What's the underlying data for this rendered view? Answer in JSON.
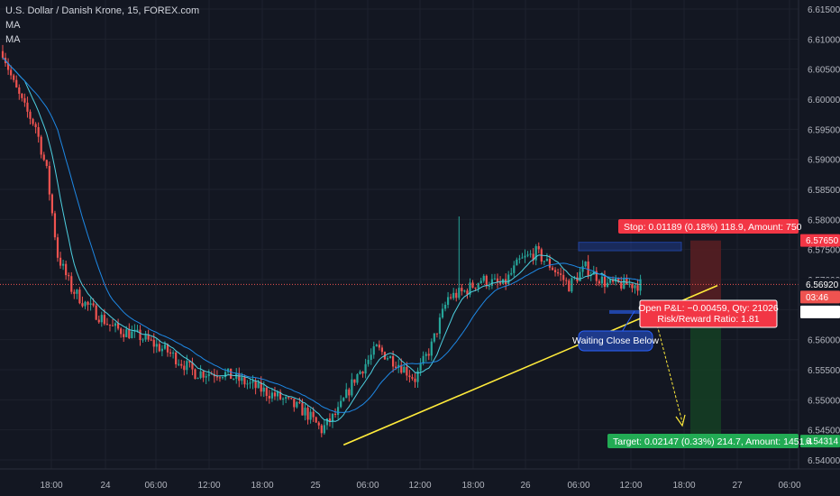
{
  "header": {
    "symbol_title": "U.S. Dollar / Danish Krone, 15, FOREX.com",
    "indicators": [
      "MA",
      "MA"
    ]
  },
  "colors": {
    "background": "#131722",
    "up_candle": "#26a69a",
    "down_candle": "#ef5350",
    "ma_fast": "#4dd0e1",
    "ma_slow": "#1e88e5",
    "trendline": "#ffeb3b",
    "stop_zone": "#5a1e22",
    "target_zone": "#153d24",
    "current_price_line": "#ef5350"
  },
  "chart_data": {
    "type": "candlestick",
    "symbol": "USD/DKK",
    "interval": "15",
    "x_labels": [
      "18:00",
      "24",
      "06:00",
      "12:00",
      "18:00",
      "25",
      "06:00",
      "12:00",
      "18:00",
      "26",
      "06:00",
      "12:00",
      "18:00",
      "27",
      "06:00"
    ],
    "y_ticks": [
      "6.61500",
      "6.61000",
      "6.60500",
      "6.60000",
      "6.59500",
      "6.59000",
      "6.58500",
      "6.58000",
      "6.57500",
      "6.57000",
      "6.56500",
      "6.56000",
      "6.55500",
      "6.55000",
      "6.54500",
      "6.54000"
    ],
    "ylim": [
      6.5385,
      6.6165
    ],
    "price_path_approx": [
      {
        "t": 0,
        "price": 6.608
      },
      {
        "t": 4,
        "price": 6.6025
      },
      {
        "t": 8,
        "price": 6.5985
      },
      {
        "t": 12,
        "price": 6.5955
      },
      {
        "t": 16,
        "price": 6.588
      },
      {
        "t": 20,
        "price": 6.574
      },
      {
        "t": 25,
        "price": 6.5685
      },
      {
        "t": 30,
        "price": 6.566
      },
      {
        "t": 40,
        "price": 6.562
      },
      {
        "t": 50,
        "price": 6.5605
      },
      {
        "t": 60,
        "price": 6.558
      },
      {
        "t": 70,
        "price": 6.5545
      },
      {
        "t": 80,
        "price": 6.5545
      },
      {
        "t": 90,
        "price": 6.5525
      },
      {
        "t": 100,
        "price": 6.5505
      },
      {
        "t": 110,
        "price": 6.548
      },
      {
        "t": 116,
        "price": 6.545
      },
      {
        "t": 122,
        "price": 6.548
      },
      {
        "t": 128,
        "price": 6.5535
      },
      {
        "t": 136,
        "price": 6.5585
      },
      {
        "t": 144,
        "price": 6.556
      },
      {
        "t": 150,
        "price": 6.5535
      },
      {
        "t": 156,
        "price": 6.559
      },
      {
        "t": 162,
        "price": 6.567
      },
      {
        "t": 168,
        "price": 6.568
      },
      {
        "t": 174,
        "price": 6.57
      },
      {
        "t": 182,
        "price": 6.569
      },
      {
        "t": 188,
        "price": 6.573
      },
      {
        "t": 194,
        "price": 6.5745
      },
      {
        "t": 200,
        "price": 6.572
      },
      {
        "t": 206,
        "price": 6.569
      },
      {
        "t": 212,
        "price": 6.572
      },
      {
        "t": 220,
        "price": 6.5692
      }
    ],
    "trendline": {
      "x1": 124,
      "y1": 6.5425,
      "x2": 260,
      "y2": 6.569
    },
    "price_labels": {
      "stop": "6.57650",
      "current": "6.56920",
      "countdown": "03:46",
      "entry": "6.56461",
      "target": "6.54314"
    },
    "current_price": 6.5692,
    "entry_price": 6.56461,
    "stop_price": 6.5765,
    "target_price": 6.54314,
    "resistance_zone": [
      6.5748,
      6.5762
    ]
  },
  "annotations": {
    "stop_label": "Stop: 0.01189 (0.18%) 118.9, Amount: 750",
    "open_pnl": "Open P&L: −0.00459, Qty: 21026",
    "risk_reward": "Risk/Reward Ratio: 1.81",
    "target_label": "Target: 0.02147 (0.33%) 214.7, Amount: 1451.4",
    "callout": "Waiting Close Below"
  }
}
